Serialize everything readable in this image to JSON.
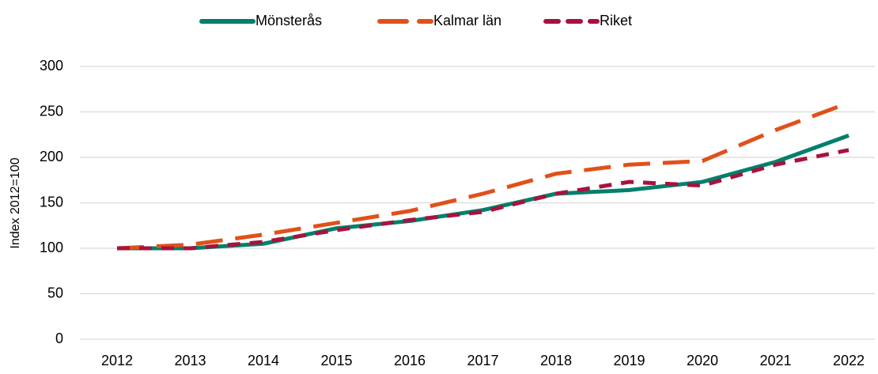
{
  "chart_data": {
    "type": "line",
    "y_label": "Index 2012=100",
    "categories": [
      "2012",
      "2013",
      "2014",
      "2015",
      "2016",
      "2017",
      "2018",
      "2019",
      "2020",
      "2021",
      "2022"
    ],
    "series": [
      {
        "name": "Mönsterås",
        "color": "#00806b",
        "dash": "solid",
        "values": [
          100,
          100,
          105,
          122,
          130,
          142,
          160,
          164,
          173,
          195,
          224
        ]
      },
      {
        "name": "Kalmar län",
        "color": "#e0511a",
        "dash": "long",
        "values": [
          100,
          104,
          115,
          128,
          141,
          160,
          182,
          192,
          196,
          230,
          260
        ]
      },
      {
        "name": "Riket",
        "color": "#a8123e",
        "dash": "short",
        "values": [
          100,
          100,
          107,
          120,
          131,
          140,
          160,
          173,
          169,
          192,
          208
        ]
      }
    ],
    "ylim": [
      0,
      300
    ],
    "yticks": [
      0,
      50,
      100,
      150,
      200,
      250,
      300
    ],
    "grid": true,
    "legend": "top"
  }
}
